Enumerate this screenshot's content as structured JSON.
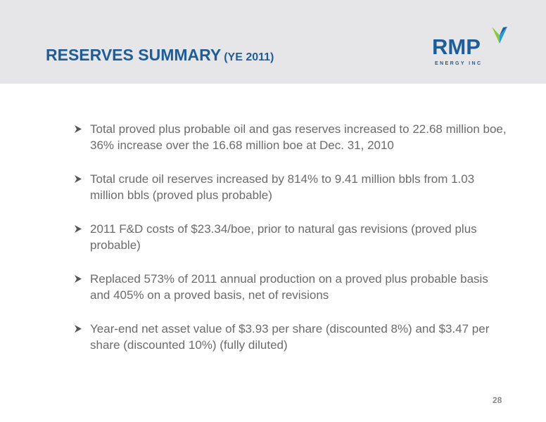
{
  "header": {
    "title": "RESERVES SUMMARY",
    "subtitle": "(YE 2011)"
  },
  "logo": {
    "wordmark": "RMP",
    "tagline": "ENERGY INC",
    "icon": "rmp-logo-chevron-icon",
    "colors": {
      "primary": "#1f5d9a",
      "green": "#8cc63f",
      "teal": "#2a9bd1"
    }
  },
  "bullets": [
    {
      "icon": "arrowhead-bullet-icon",
      "text": "Total proved plus probable oil and gas reserves increased to 22.68 million boe, 36% increase over the 16.68 million boe at Dec. 31, 2010"
    },
    {
      "icon": "arrowhead-bullet-icon",
      "text": "Total crude oil reserves increased by 814% to 9.41 million bbls from 1.03 million bbls (proved plus probable)"
    },
    {
      "icon": "arrowhead-bullet-icon",
      "text": "2011 F&D costs of $23.34/boe, prior to natural gas revisions (proved plus probable)"
    },
    {
      "icon": "arrowhead-bullet-icon",
      "text": "Replaced 573% of 2011 annual production on a proved plus probable basis and 405% on a proved basis, net of revisions"
    },
    {
      "icon": "arrowhead-bullet-icon",
      "text": "Year-end net asset value of $3.93 per share (discounted 8%) and $3.47 per share (discounted 10%) (fully diluted)"
    }
  ],
  "page_number": "28",
  "colors": {
    "header_background": "#e6e6e8",
    "title": "#1f5d9a",
    "body_text": "#6b6b6b"
  }
}
